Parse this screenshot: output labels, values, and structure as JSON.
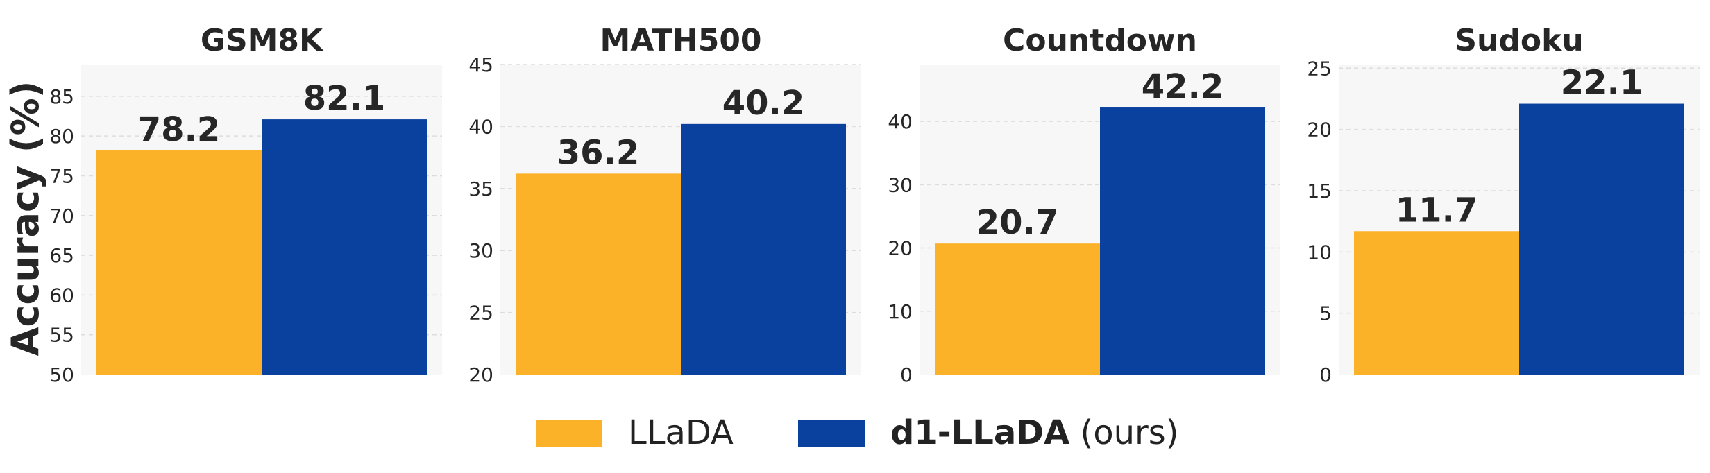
{
  "ylabel": "Accuracy (%)",
  "colors": {
    "llada": "#FBB128",
    "d1_llada": "#0A419E",
    "plot_bg": "#F7F7F7",
    "text": "#262626",
    "grid": "#DDDDDD"
  },
  "legend": {
    "items": [
      {
        "key": "llada",
        "label": "LLaDA"
      },
      {
        "key": "d1_llada",
        "label_bold": "d1-LLaDA",
        "label_rest": " (ours)"
      }
    ]
  },
  "chart_data": [
    {
      "type": "bar",
      "title": "GSM8K",
      "series": [
        {
          "name": "LLaDA",
          "values": [
            78.2
          ]
        },
        {
          "name": "d1-LLaDA (ours)",
          "values": [
            82.1
          ]
        }
      ],
      "ylim": [
        50,
        89
      ],
      "yticks": [
        50,
        55,
        60,
        65,
        70,
        75,
        80,
        85
      ],
      "value_labels": [
        "78.2",
        "82.1"
      ],
      "grid": true
    },
    {
      "type": "bar",
      "title": "MATH500",
      "series": [
        {
          "name": "LLaDA",
          "values": [
            36.2
          ]
        },
        {
          "name": "d1-LLaDA (ours)",
          "values": [
            40.2
          ]
        }
      ],
      "ylim": [
        20,
        45
      ],
      "yticks": [
        20,
        25,
        30,
        35,
        40,
        45
      ],
      "value_labels": [
        "36.2",
        "40.2"
      ],
      "grid": true
    },
    {
      "type": "bar",
      "title": "Countdown",
      "series": [
        {
          "name": "LLaDA",
          "values": [
            20.7
          ]
        },
        {
          "name": "d1-LLaDA (ours)",
          "values": [
            42.2
          ]
        }
      ],
      "ylim": [
        0,
        49
      ],
      "yticks": [
        0,
        10,
        20,
        30,
        40
      ],
      "value_labels": [
        "20.7",
        "42.2"
      ],
      "grid": true
    },
    {
      "type": "bar",
      "title": "Sudoku",
      "series": [
        {
          "name": "LLaDA",
          "values": [
            11.7
          ]
        },
        {
          "name": "d1-LLaDA (ours)",
          "values": [
            22.1
          ]
        }
      ],
      "ylim": [
        0,
        25.3
      ],
      "yticks": [
        0,
        5,
        10,
        15,
        20,
        25
      ],
      "value_labels": [
        "11.7",
        "22.1"
      ],
      "grid": true
    }
  ]
}
